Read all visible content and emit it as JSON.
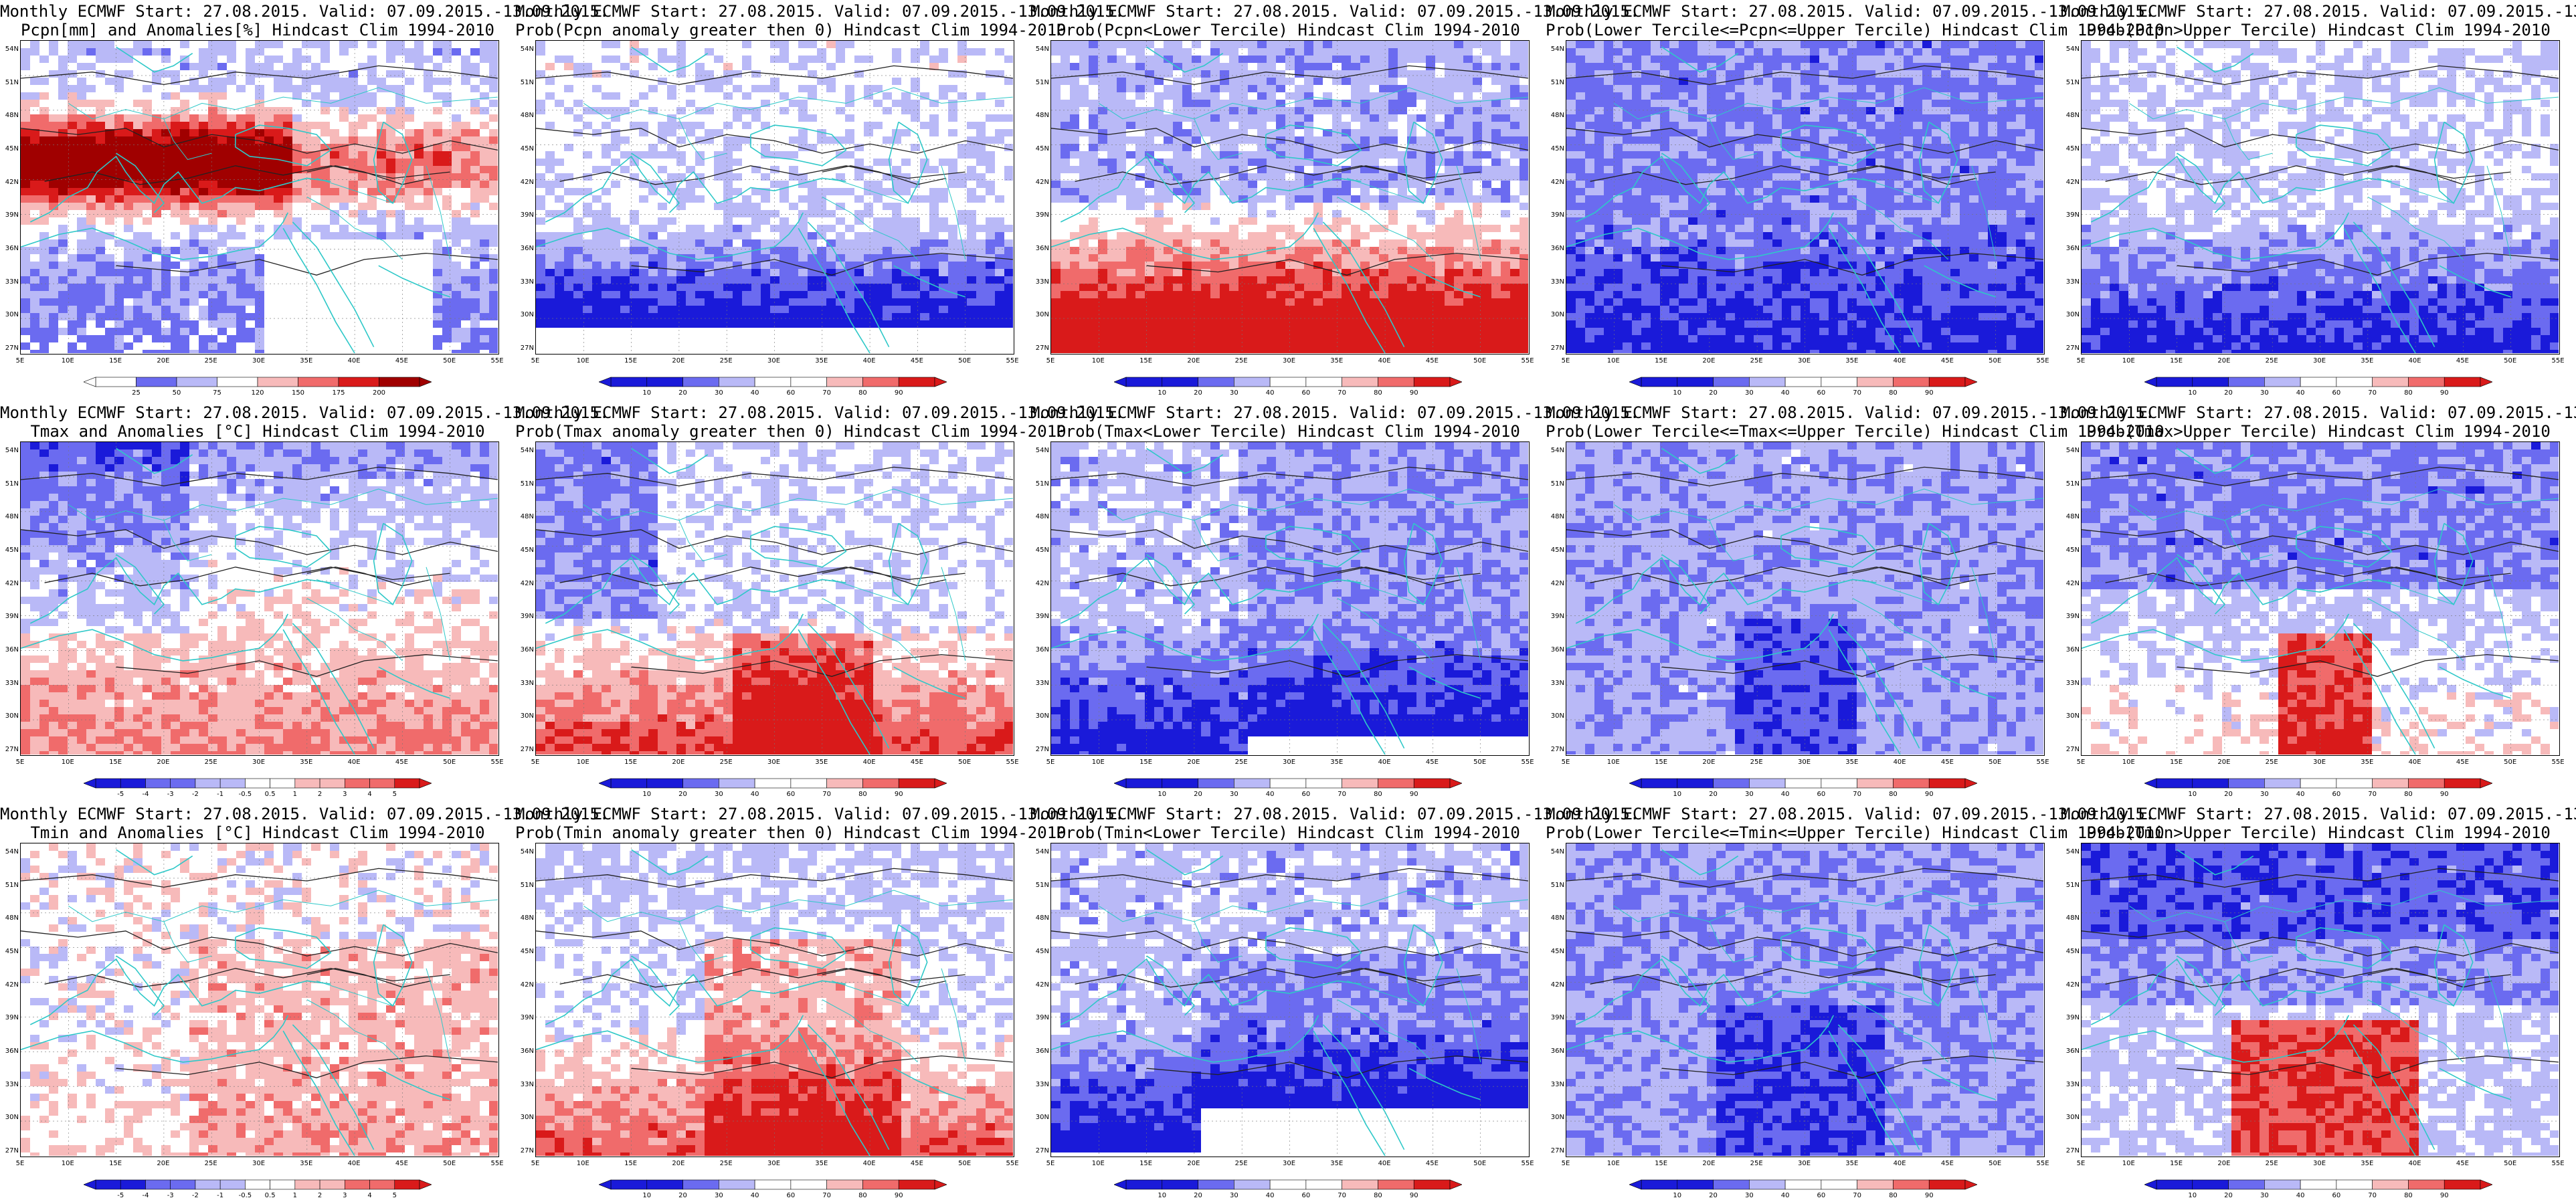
{
  "figure": {
    "header": "Monthly ECMWF Start: 27.08.2015. Valid: 07.09.2015.-13.09.2015.",
    "lat_labels": [
      "54N",
      "51N",
      "48N",
      "45N",
      "42N",
      "39N",
      "36N",
      "33N",
      "30N",
      "27N"
    ],
    "lon_labels": [
      "5E",
      "10E",
      "15E",
      "20E",
      "25E",
      "30E",
      "35E",
      "40E",
      "45E",
      "50E",
      "55E"
    ],
    "colors": {
      "blue_dark": "#1a1ad9",
      "blue_mid": "#6b6bf0",
      "blue_light": "#b9b9f7",
      "red_light": "#f7baba",
      "red_mid": "#f06b6b",
      "red_dark": "#d91a1a",
      "red_deep": "#a00000",
      "coast": "#2ec8c8",
      "contour": "#222222"
    },
    "panels": [
      {
        "name": "pcpn-anomalies",
        "subtitle": "Pcpn[mm] and Anomalies[%] Hindcast Clim 1994-2010",
        "colorbar": [
          "25",
          "50",
          "75",
          "120",
          "150",
          "175",
          "200"
        ],
        "scheme": "pcpn"
      },
      {
        "name": "prob-pcpn-anomaly-gt0",
        "subtitle": "Prob(Pcpn anomaly greater then 0) Hindcast Clim 1994-2010",
        "colorbar": [
          "10",
          "20",
          "30",
          "40",
          "60",
          "70",
          "80",
          "90"
        ],
        "scheme": "pcpn_prob"
      },
      {
        "name": "prob-pcpn-lower-tercile",
        "subtitle": "Prob(Pcpn<Lower Tercile) Hindcast Clim 1994-2010",
        "colorbar": [
          "10",
          "20",
          "30",
          "40",
          "60",
          "70",
          "80",
          "90"
        ],
        "scheme": "pcpn_lower"
      },
      {
        "name": "prob-pcpn-middle-tercile",
        "subtitle": "Prob(Lower Tercile<=Pcpn<=Upper Tercile) Hindcast Clim 1994-2010",
        "colorbar": [
          "10",
          "20",
          "30",
          "40",
          "60",
          "70",
          "80",
          "90"
        ],
        "scheme": "pcpn_mid"
      },
      {
        "name": "prob-pcpn-upper-tercile",
        "subtitle": "Prob(Pcpn>Upper Tercile) Hindcast Clim 1994-2010",
        "colorbar": [
          "10",
          "20",
          "30",
          "40",
          "60",
          "70",
          "80",
          "90"
        ],
        "scheme": "pcpn_upper"
      },
      {
        "name": "tmax-anomalies",
        "subtitle": "Tmax and Anomalies [°C] Hindcast Clim 1994-2010",
        "colorbar": [
          "-5",
          "-4",
          "-3",
          "-2",
          "-1",
          "-0.5",
          "0.5",
          "1",
          "2",
          "3",
          "4",
          "5"
        ],
        "scheme": "tmax"
      },
      {
        "name": "prob-tmax-anomaly-gt0",
        "subtitle": "Prob(Tmax anomaly greater then 0) Hindcast Clim 1994-2010",
        "colorbar": [
          "10",
          "20",
          "30",
          "40",
          "60",
          "70",
          "80",
          "90"
        ],
        "scheme": "tmax_prob"
      },
      {
        "name": "prob-tmax-lower-tercile",
        "subtitle": "Prob(Tmax<Lower Tercile) Hindcast Clim 1994-2010",
        "colorbar": [
          "10",
          "20",
          "30",
          "40",
          "60",
          "70",
          "80",
          "90"
        ],
        "scheme": "tmax_lower"
      },
      {
        "name": "prob-tmax-middle-tercile",
        "subtitle": "Prob(Lower Tercile<=Tmax<=Upper Tercile) Hindcast Clim 1994-2010",
        "colorbar": [
          "10",
          "20",
          "30",
          "40",
          "60",
          "70",
          "80",
          "90"
        ],
        "scheme": "tmax_mid"
      },
      {
        "name": "prob-tmax-upper-tercile",
        "subtitle": "Prob(Tmax>Upper Tercile) Hindcast Clim 1994-2010",
        "colorbar": [
          "10",
          "20",
          "30",
          "40",
          "60",
          "70",
          "80",
          "90"
        ],
        "scheme": "tmax_upper"
      },
      {
        "name": "tmin-anomalies",
        "subtitle": "Tmin and Anomalies [°C] Hindcast Clim 1994-2010",
        "colorbar": [
          "-5",
          "-4",
          "-3",
          "-2",
          "-1",
          "-0.5",
          "0.5",
          "1",
          "2",
          "3",
          "4",
          "5"
        ],
        "scheme": "tmin"
      },
      {
        "name": "prob-tmin-anomaly-gt0",
        "subtitle": "Prob(Tmin anomaly greater then 0) Hindcast Clim 1994-2010",
        "colorbar": [
          "10",
          "20",
          "30",
          "40",
          "60",
          "70",
          "80",
          "90"
        ],
        "scheme": "tmin_prob"
      },
      {
        "name": "prob-tmin-lower-tercile",
        "subtitle": "Prob(Tmin<Lower Tercile) Hindcast Clim 1994-2010",
        "colorbar": [
          "10",
          "20",
          "30",
          "40",
          "60",
          "70",
          "80",
          "90"
        ],
        "scheme": "tmin_lower"
      },
      {
        "name": "prob-tmin-middle-tercile",
        "subtitle": "Prob(Lower Tercile<=Tmin<=Upper Tercile) Hindcast Clim 1994-2010",
        "colorbar": [
          "10",
          "20",
          "30",
          "40",
          "60",
          "70",
          "80",
          "90"
        ],
        "scheme": "tmin_mid"
      },
      {
        "name": "prob-tmin-upper-tercile",
        "subtitle": "Prob(Tmin>Upper Tercile) Hindcast Clim 1994-2010",
        "colorbar": [
          "10",
          "20",
          "30",
          "40",
          "60",
          "70",
          "80",
          "90"
        ],
        "scheme": "tmin_upper"
      }
    ]
  }
}
